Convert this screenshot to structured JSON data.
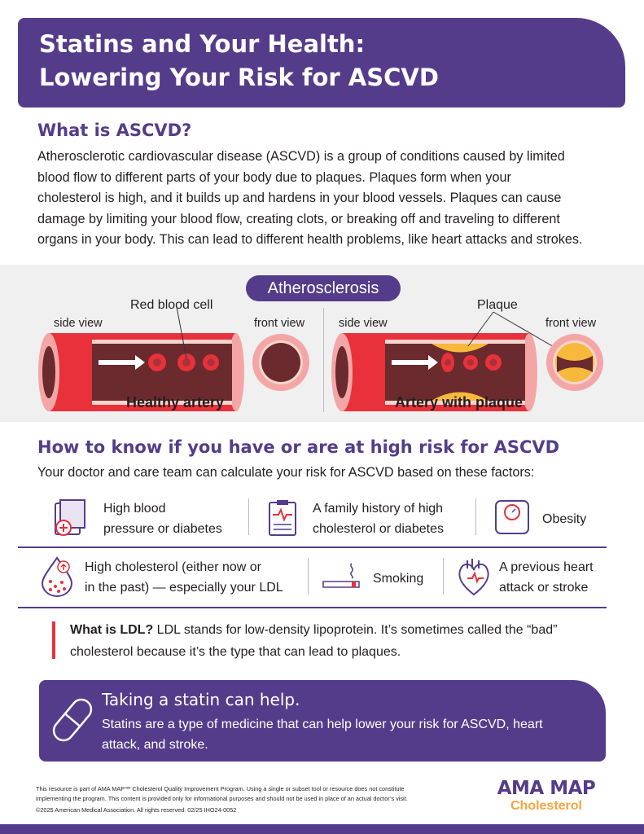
{
  "title": {
    "line1": "Statins and Your Health:",
    "line2": "Lowering Your Risk for ASCVD"
  },
  "what": {
    "heading": "What is ASCVD?",
    "lines": [
      "Atherosclerotic cardiovascular disease (ASCVD) is a group of conditions caused by limited",
      "blood flow to different parts of your body due to plaques. Plaques form when your",
      "cholesterol is high, and it builds up and hardens in your blood vessels. Plaques can cause",
      "damage by limiting your blood flow, creating clots, or breaking off and traveling to different",
      "organs in your body. This can lead to different health problems, like heart attacks and strokes."
    ]
  },
  "diagram": {
    "title": "Atherosclerosis",
    "side_view": "side view",
    "front_view": "front view",
    "rbc": "Red blood cell",
    "plaque": "Plaque",
    "healthy": "Healthy artery",
    "with_plaque": "Artery with plaque"
  },
  "risk": {
    "heading": "How to know if you have or are at high risk for ASCVD",
    "intro": "Your doctor and care team can calculate your risk for ASCVD based on these factors:",
    "factors": [
      {
        "icon": "medical-records-icon",
        "l1": "High blood",
        "l2": "pressure or diabetes"
      },
      {
        "icon": "clipboard-heart-icon",
        "l1": "A family history of high",
        "l2": "cholesterol or diabetes"
      },
      {
        "icon": "scale-icon",
        "l1": "Obesity",
        "l2": ""
      },
      {
        "icon": "blood-drop-icon",
        "l1": "High cholesterol (either now or",
        "l2": "in the past) — especially your LDL"
      },
      {
        "icon": "cigarette-icon",
        "l1": "Smoking",
        "l2": ""
      },
      {
        "icon": "heart-icon",
        "l1": "A previous heart",
        "l2": "attack or stroke"
      }
    ]
  },
  "ldl": {
    "q": "What is LDL?",
    "a1": " LDL stands for low-density lipoprotein. It’s sometimes called the “bad”",
    "a2": "cholesterol because it’s the type that can lead to plaques."
  },
  "statin": {
    "heading": "Taking a statin can help.",
    "l1": "Statins are a type of medicine that can help lower your risk for ASCVD, heart",
    "l2": "attack, and stroke."
  },
  "footer": {
    "l1": "This resource is part of AMA MAP™ Cholesterol Quality Improvement Program. Using a single or subset tool or resource does not constitute",
    "l2": "implementing the program. This content is provided only for informational purposes and should not be used in place of an actual doctor’s visit.",
    "l3": "©2025 American Medical Association. All rights reserved. 02/25 IHO24-0052"
  },
  "logo": {
    "text": "AMA MAP",
    "sub": "Cholesterol"
  },
  "colors": {
    "purple": "#553c8b",
    "red": "#e8313a",
    "orange": "#f6a53b"
  }
}
